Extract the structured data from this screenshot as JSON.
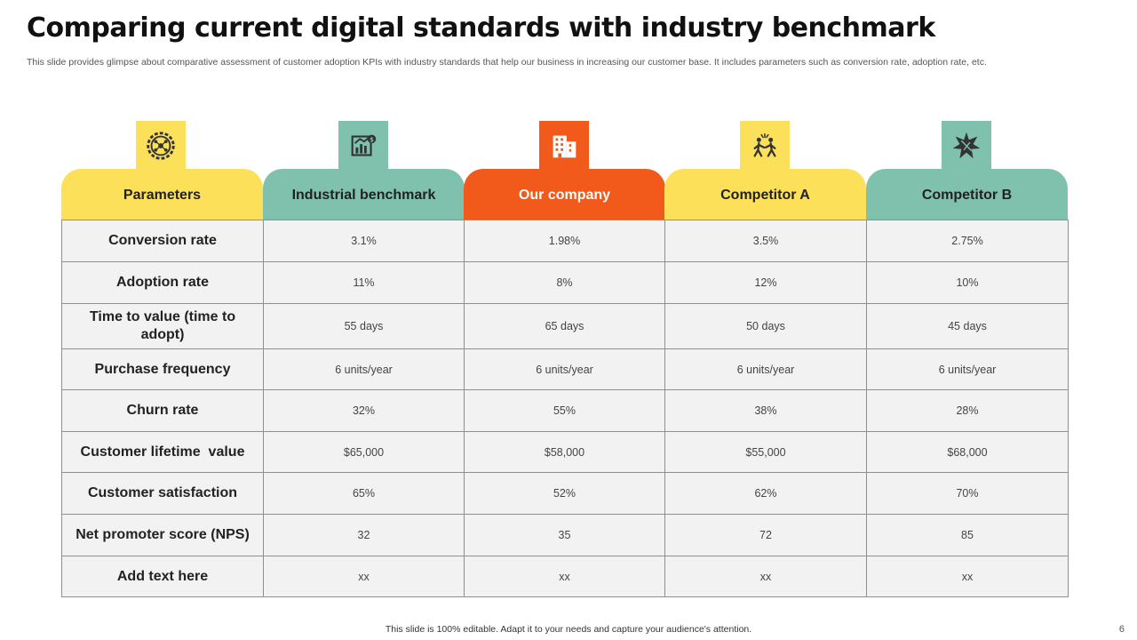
{
  "title": "Comparing current digital standards with industry benchmark",
  "subtitle": "This slide provides glimpse about comparative assessment of customer adoption KPIs with industry standards that help our business in increasing our customer base. It includes parameters such as conversion rate, adoption rate, etc.",
  "colors": {
    "yellow": "#fde05a",
    "teal": "#7fc1ac",
    "orange": "#f15a1a"
  },
  "columns": [
    {
      "label": "Parameters",
      "icon": "gear-network-icon",
      "color": "#fde05a"
    },
    {
      "label": "Industrial benchmark",
      "icon": "chart-analytics-icon",
      "color": "#7fc1ac"
    },
    {
      "label": "Our company",
      "icon": "office-building-icon",
      "color": "#f15a1a"
    },
    {
      "label": "Competitor A",
      "icon": "competition-people-icon",
      "color": "#fde05a"
    },
    {
      "label": "Competitor B",
      "icon": "burst-star-icon",
      "color": "#7fc1ac"
    }
  ],
  "rows": [
    {
      "parameter": "Conversion rate",
      "values": [
        "3.1%",
        "1.98%",
        "3.5%",
        "2.75%"
      ]
    },
    {
      "parameter": "Adoption rate",
      "values": [
        "11%",
        "8%",
        "12%",
        "10%"
      ]
    },
    {
      "parameter": "Time to value (time to adopt)",
      "values": [
        "55 days",
        "65 days",
        "50 days",
        "45 days"
      ]
    },
    {
      "parameter": "Purchase frequency",
      "values": [
        "6 units/year",
        "6 units/year",
        "6 units/year",
        "6 units/year"
      ]
    },
    {
      "parameter": "Churn rate",
      "values": [
        "32%",
        "55%",
        "38%",
        "28%"
      ]
    },
    {
      "parameter": "Customer lifetime  value",
      "values": [
        "$65,000",
        "$58,000",
        "$55,000",
        "$68,000"
      ]
    },
    {
      "parameter": "Customer satisfaction",
      "values": [
        "65%",
        "52%",
        "62%",
        "70%"
      ]
    },
    {
      "parameter": "Net promoter score (NPS)",
      "values": [
        "32",
        "35",
        "72",
        "85"
      ]
    },
    {
      "parameter": "Add text here",
      "values": [
        "xx",
        "xx",
        "xx",
        "xx"
      ]
    }
  ],
  "footer": "This slide is 100% editable. Adapt it to your needs and capture your audience's attention.",
  "page_number": "6"
}
